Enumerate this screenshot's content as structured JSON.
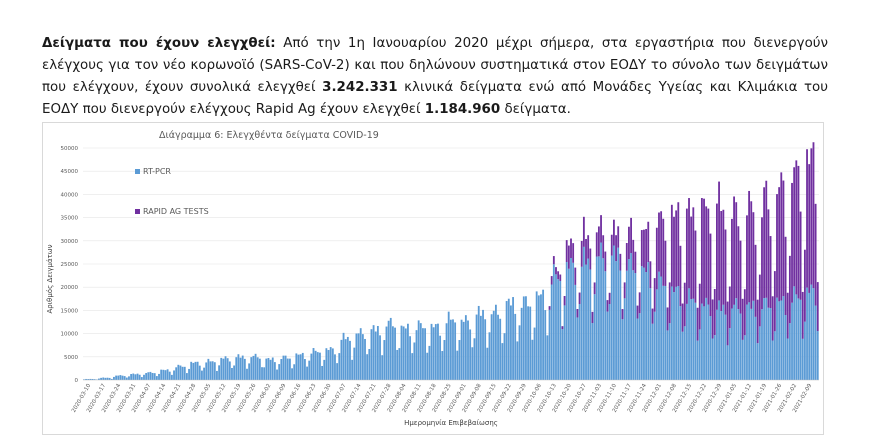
{
  "paragraph": {
    "heading": "Δείγματα που έχουν ελεγχθεί:",
    "text1": " Από την 1η Ιανουαρίου 2020 μέχρι σήμερα, στα εργαστήρια που διενεργούν ελέγχους για τον νέο κορωνοϊό (SARS-CoV-2) και που δηλώνουν συστηματικά στον ΕΟΔΥ το σύνολο των δειγμάτων που ελέγχουν, έχουν συνολικά ελεγχθεί ",
    "pcr_total": "3.242.331",
    "text2": " κλινικά δείγματα ενώ από Μονάδες Υγείας και Κλιμάκια του ΕΟΔΥ που διενεργούν ελέγχους Rapid Ag έχουν ελεγχθεί ",
    "rapid_total": "1.184.960",
    "text3": " δείγματα."
  },
  "chart_data": {
    "type": "bar",
    "stacked": true,
    "title": "Διάγραμμα 6: Ελεγχθέντα δείγματα COVID-19",
    "xlabel": "Ημερομηνία Επιβεβαίωσης",
    "ylabel": "Αριθμός Δειγμάτων",
    "ylim": [
      0,
      50000
    ],
    "yticks": [
      "0",
      "5000",
      "10000",
      "15000",
      "20000",
      "25000",
      "30000",
      "35000",
      "40000",
      "45000",
      "50000"
    ],
    "xtick_labels": [
      "2020-03-10",
      "2020-03-17",
      "2020-03-24",
      "2020-03-31",
      "2020-04-07",
      "2020-04-14",
      "2020-04-21",
      "2020-04-28",
      "2020-05-05",
      "2020-05-12",
      "2020-05-19",
      "2020-05-26",
      "2020-06-02",
      "2020-06-09",
      "2020-06-16",
      "2020-06-23",
      "2020-06-30",
      "2020-07-07",
      "2020-07-14",
      "2020-07-21",
      "2020-07-28",
      "2020-08-04",
      "2020-08-11",
      "2020-08-18",
      "2020-08-25",
      "2020-09-01",
      "2020-09-08",
      "2020-09-15",
      "2020-09-22",
      "2020-09-29",
      "2020-10-06",
      "2020-10-13",
      "2020-10-20",
      "2020-10-27",
      "2020-11-03",
      "2020-11-10",
      "2020-11-17",
      "2020-11-24",
      "2020-12-01",
      "2020-12-08",
      "2020-12-15",
      "2020-12-22",
      "2020-12-29",
      "2021-01-05",
      "2021-01-12",
      "2021-01-19",
      "2021-01-26",
      "2021-02-02",
      "2021-02-09"
    ],
    "grid": true,
    "legend_position": "left",
    "series": [
      {
        "name": "RT-PCR",
        "color": "#5b9bd5",
        "weekly_values": [
          200,
          450,
          900,
          1200,
          1500,
          2000,
          2800,
          3500,
          3800,
          4400,
          4700,
          4800,
          4200,
          4600,
          5100,
          5800,
          6200,
          8500,
          9500,
          10200,
          11500,
          10500,
          11000,
          10800,
          12300,
          12000,
          13500,
          13800,
          15500,
          15800,
          17000,
          21000,
          23000,
          24000,
          25200,
          25000,
          23500,
          22000,
          20000,
          18000,
          16500,
          15200,
          14500,
          15000,
          14800,
          15500,
          15800,
          17000,
          18000
        ]
      },
      {
        "name": "RAPID AG TESTS",
        "color": "#7030a0",
        "weekly_values": [
          0,
          0,
          0,
          0,
          0,
          0,
          0,
          0,
          0,
          0,
          0,
          0,
          0,
          0,
          0,
          0,
          0,
          0,
          0,
          0,
          0,
          0,
          0,
          0,
          0,
          0,
          0,
          0,
          0,
          0,
          0,
          1500,
          4000,
          5000,
          5000,
          4500,
          6000,
          7500,
          12000,
          15000,
          17000,
          19000,
          20000,
          18000,
          19000,
          20000,
          22000,
          24000,
          26000
        ]
      }
    ]
  }
}
